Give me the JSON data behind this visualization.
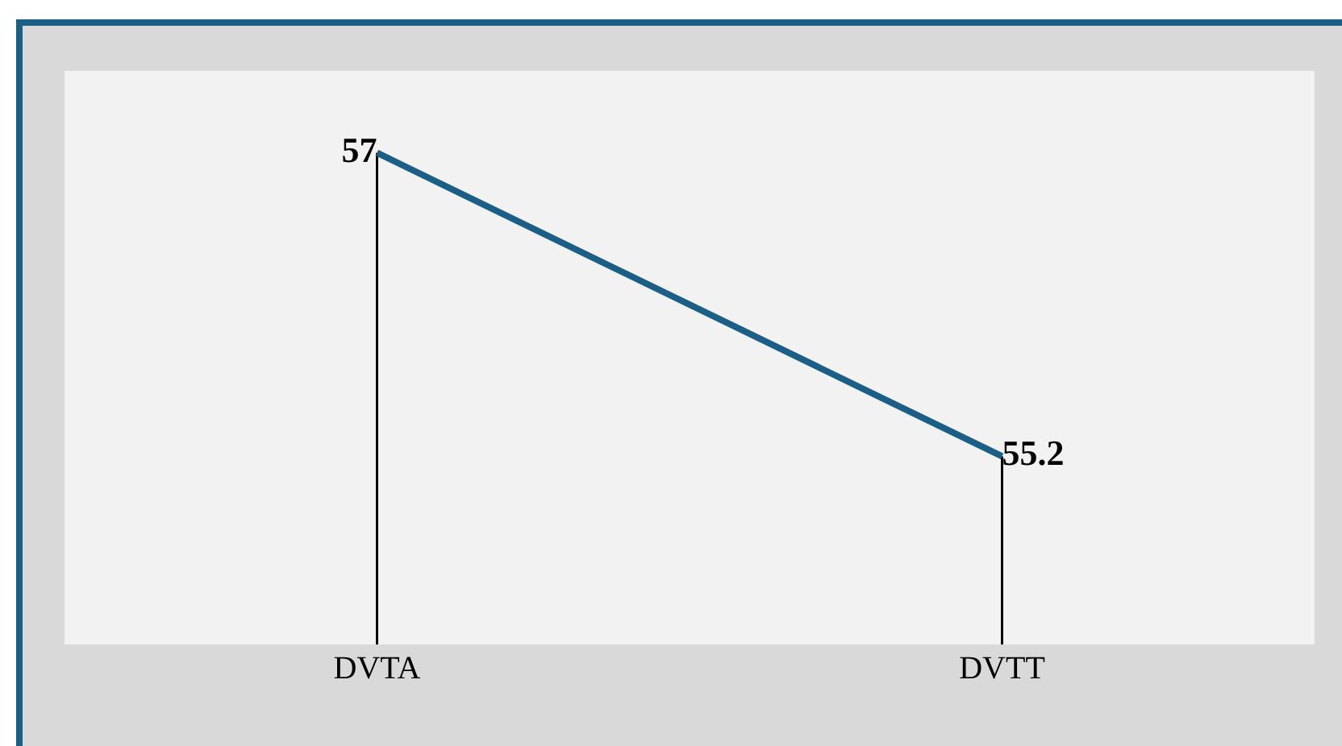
{
  "chart_data": {
    "type": "line",
    "categories": [
      "DVTA",
      "DVTT"
    ],
    "data_labels": true,
    "tick_labels": "x",
    "grid": "x",
    "series": [
      {
        "color": "#1b5f86",
        "values": [
          57,
          55.2
        ]
      }
    ]
  }
}
